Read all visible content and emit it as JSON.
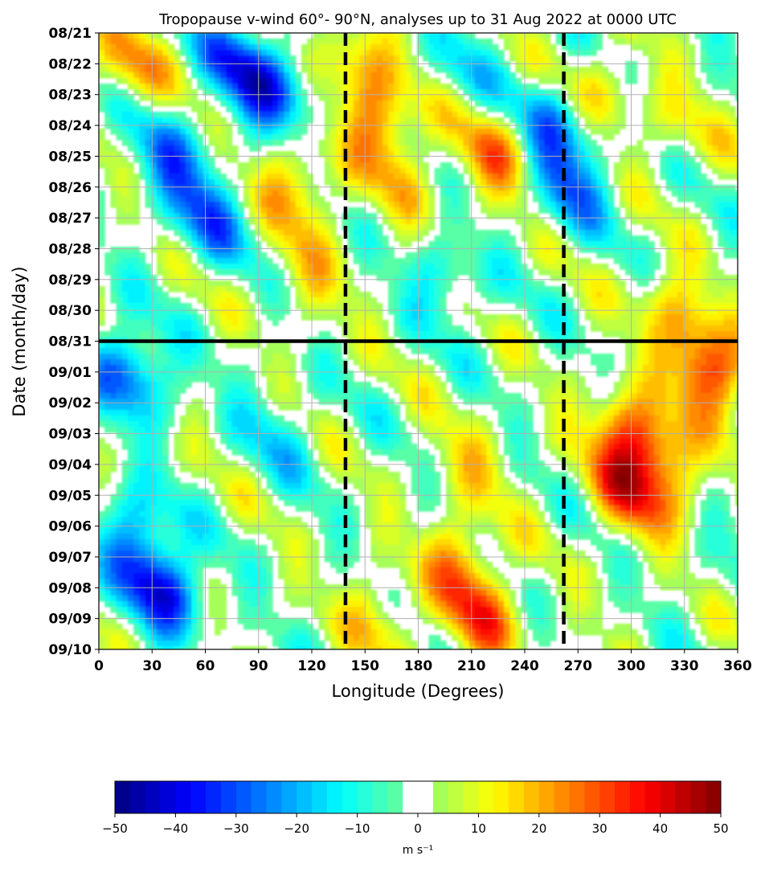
{
  "chart_data": {
    "type": "heatmap",
    "title": "Tropopause v-wind 60°- 90°N, analyses up to 31 Aug 2022 at 0000 UTC",
    "xlabel": "Longitude (Degrees)",
    "ylabel": "Date (month/day)",
    "x_ticks": [
      "0",
      "30",
      "60",
      "90",
      "120",
      "150",
      "180",
      "210",
      "240",
      "270",
      "300",
      "330",
      "360"
    ],
    "xlim": [
      0,
      360
    ],
    "y_ticks": [
      "08/21",
      "08/22",
      "08/23",
      "08/24",
      "08/25",
      "08/26",
      "08/27",
      "08/28",
      "08/29",
      "08/30",
      "08/31",
      "09/01",
      "09/02",
      "09/03",
      "09/04",
      "09/05",
      "09/06",
      "09/07",
      "09/08",
      "09/09",
      "09/10"
    ],
    "ylim": [
      "08/21",
      "09/10"
    ],
    "grid": true,
    "analysis_line": {
      "date": "08/31",
      "style": "solid"
    },
    "vertical_lines": [
      {
        "longitude": 139,
        "style": "dashed"
      },
      {
        "longitude": 262,
        "style": "dashed"
      }
    ],
    "colorbar": {
      "label": "m s⁻¹",
      "ticks": [
        "−50",
        "−40",
        "−30",
        "−20",
        "−10",
        "0",
        "10",
        "20",
        "30",
        "40",
        "50"
      ],
      "range": [
        -50,
        50
      ],
      "step": 2.5,
      "white_band": [
        -2.5,
        2.5
      ],
      "colormap": "jet"
    },
    "features": [
      {
        "lon": 16,
        "date": "08/22",
        "v": 20
      },
      {
        "lon": 40,
        "date": "08/25",
        "v": -22
      },
      {
        "lon": 60,
        "date": "08/27",
        "v": -24
      },
      {
        "lon": 80,
        "date": "08/22",
        "v": -28
      },
      {
        "lon": 100,
        "date": "08/23",
        "v": -24
      },
      {
        "lon": 112,
        "date": "08/26",
        "v": 22
      },
      {
        "lon": 118,
        "date": "08/29",
        "v": 12
      },
      {
        "lon": 145,
        "date": "08/22",
        "v": 20
      },
      {
        "lon": 160,
        "date": "08/24",
        "v": 24
      },
      {
        "lon": 170,
        "date": "08/26",
        "v": 10
      },
      {
        "lon": 195,
        "date": "08/29",
        "v": -15
      },
      {
        "lon": 205,
        "date": "08/22",
        "v": -10
      },
      {
        "lon": 225,
        "date": "08/25",
        "v": 24
      },
      {
        "lon": 258,
        "date": "08/24",
        "v": -22
      },
      {
        "lon": 262,
        "date": "08/26",
        "v": -25
      },
      {
        "lon": 285,
        "date": "08/23",
        "v": 14
      },
      {
        "lon": 330,
        "date": "08/24",
        "v": 10
      },
      {
        "lon": 325,
        "date": "08/30",
        "v": 18
      },
      {
        "lon": 18,
        "date": "09/01",
        "v": -30
      },
      {
        "lon": 345,
        "date": "09/01",
        "v": 36
      },
      {
        "lon": 300,
        "date": "09/03",
        "v": 30
      },
      {
        "lon": 298,
        "date": "09/05",
        "v": 28
      },
      {
        "lon": 320,
        "date": "09/04",
        "v": 20
      },
      {
        "lon": 35,
        "date": "09/08",
        "v": -38
      },
      {
        "lon": 20,
        "date": "09/06",
        "v": -20
      },
      {
        "lon": 205,
        "date": "09/07",
        "v": 20
      },
      {
        "lon": 215,
        "date": "09/09",
        "v": 26
      },
      {
        "lon": 160,
        "date": "09/09",
        "v": 16
      },
      {
        "lon": 100,
        "date": "09/03",
        "v": -12
      },
      {
        "lon": 210,
        "date": "09/04",
        "v": 12
      },
      {
        "lon": 360,
        "date": "09/07",
        "v": -4
      }
    ]
  }
}
